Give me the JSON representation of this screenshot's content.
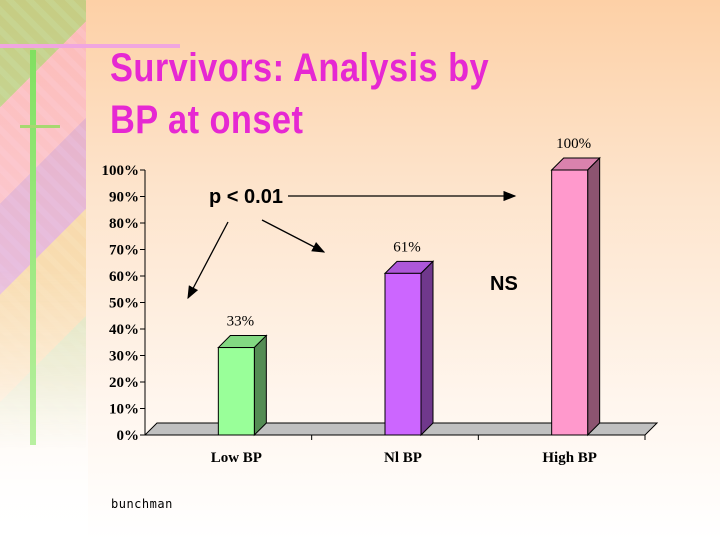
{
  "slide": {
    "title_line1": "Survivors: Analysis by",
    "title_line2": "BP at onset",
    "footer": "bunchman",
    "accent_color": "#e628d2"
  },
  "chart_data": {
    "type": "bar",
    "categories": [
      "Low BP",
      "Nl BP",
      "High BP"
    ],
    "values": [
      33,
      61,
      100
    ],
    "value_labels": [
      "33%",
      "61%",
      "100%"
    ],
    "bar_colors": [
      "#99ff99",
      "#cc66ff",
      "#ff99cc"
    ],
    "ylim": [
      0,
      100
    ],
    "yticks": [
      "0%",
      "10%",
      "20%",
      "30%",
      "40%",
      "50%",
      "60%",
      "70%",
      "80%",
      "90%",
      "100%"
    ],
    "annotations": [
      {
        "text": "p < 0.01",
        "points_to": [
          "Low BP",
          "Nl BP",
          "High BP"
        ]
      },
      {
        "text": "NS",
        "between": [
          "Nl BP",
          "High BP"
        ]
      }
    ],
    "grid": false,
    "legend": "none"
  }
}
